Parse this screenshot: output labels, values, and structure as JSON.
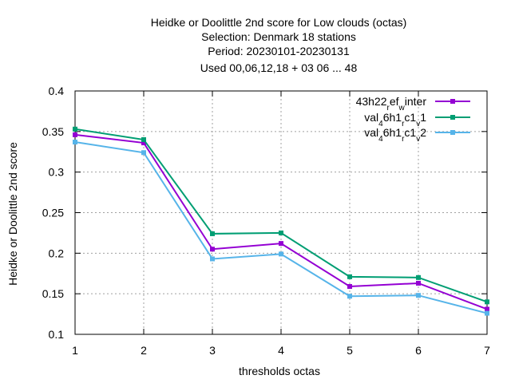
{
  "chart_data": {
    "type": "line",
    "title_lines": [
      "Heidke or Doolittle 2nd score  for Low clouds (octas)",
      "Selection: Denmark     18 stations",
      "Period: 20230101-20230131",
      "Used  00,06,12,18  + 03 06 ... 48"
    ],
    "xlabel": "thresholds octas",
    "ylabel": "Heidke or Doolittle 2nd score",
    "x": [
      1,
      2,
      3,
      4,
      5,
      6,
      7
    ],
    "xlim": [
      1,
      7
    ],
    "ylim": [
      0.1,
      0.4
    ],
    "x_ticks": [
      "1",
      "2",
      "3",
      "4",
      "5",
      "6",
      "7"
    ],
    "y_ticks": [
      "0.1",
      "0.15",
      "0.2",
      "0.25",
      "0.3",
      "0.35",
      "0.4"
    ],
    "y_tick_values": [
      0.1,
      0.15,
      0.2,
      0.25,
      0.3,
      0.35,
      0.4
    ],
    "grid": true,
    "legend_position": "top-right",
    "series": [
      {
        "name": "43h22_ref_winter",
        "label_parts": [
          [
            "43h22",
            ""
          ],
          [
            "r",
            "sub"
          ],
          [
            "ef",
            ""
          ],
          [
            "w",
            "sub"
          ],
          [
            "inter",
            ""
          ]
        ],
        "color": "#9400d3",
        "values": [
          0.346,
          0.336,
          0.205,
          0.212,
          0.159,
          0.163,
          0.131
        ]
      },
      {
        "name": "val_46h1_rc1_v1",
        "label_parts": [
          [
            "val",
            ""
          ],
          [
            "4",
            "sub"
          ],
          [
            "6h1",
            ""
          ],
          [
            "r",
            "sub"
          ],
          [
            "c1",
            ""
          ],
          [
            "v",
            "sub"
          ],
          [
            "1",
            ""
          ]
        ],
        "color": "#009e73",
        "values": [
          0.353,
          0.34,
          0.224,
          0.225,
          0.171,
          0.17,
          0.14
        ]
      },
      {
        "name": "val_46h1_rc1_v2",
        "label_parts": [
          [
            "val",
            ""
          ],
          [
            "4",
            "sub"
          ],
          [
            "6h1",
            ""
          ],
          [
            "r",
            "sub"
          ],
          [
            "c1",
            ""
          ],
          [
            "v",
            "sub"
          ],
          [
            "2",
            ""
          ]
        ],
        "color": "#56b4e9",
        "values": [
          0.337,
          0.324,
          0.193,
          0.199,
          0.147,
          0.148,
          0.126
        ]
      }
    ]
  }
}
